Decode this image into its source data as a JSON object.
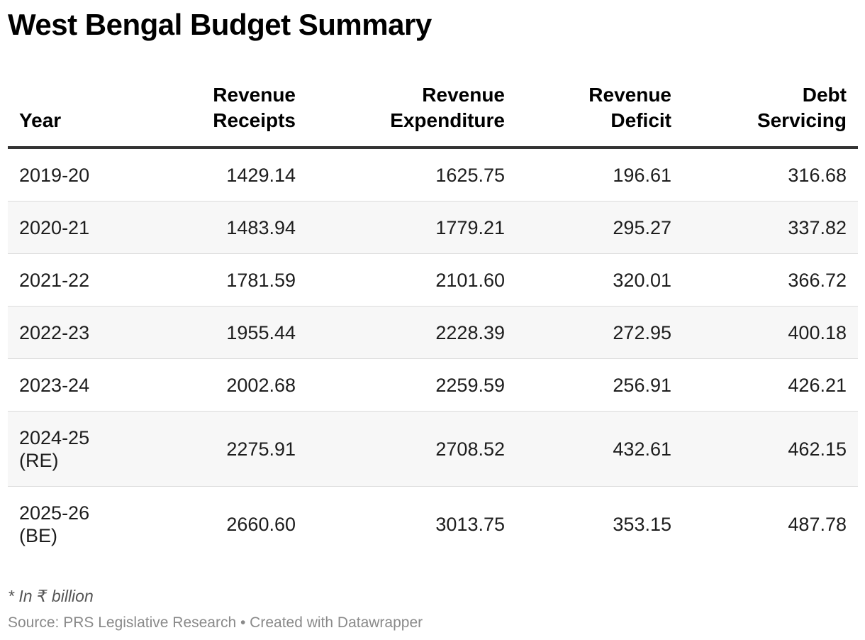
{
  "chart_data": {
    "type": "table",
    "title": "West Bengal Budget Summary",
    "columns": [
      "Year",
      "Revenue Receipts",
      "Revenue Expenditure",
      "Revenue Deficit",
      "Debt Servicing"
    ],
    "rows": [
      [
        "2019-20",
        "1429.14",
        "1625.75",
        "196.61",
        "316.68"
      ],
      [
        "2020-21",
        "1483.94",
        "1779.21",
        "295.27",
        "337.82"
      ],
      [
        "2021-22",
        "1781.59",
        "2101.60",
        "320.01",
        "366.72"
      ],
      [
        "2022-23",
        "1955.44",
        "2228.39",
        "272.95",
        "400.18"
      ],
      [
        "2023-24",
        "2002.68",
        "2259.59",
        "256.91",
        "426.21"
      ],
      [
        "2024-25 (RE)",
        "2275.91",
        "2708.52",
        "432.61",
        "462.15"
      ],
      [
        "2025-26 (BE)",
        "2660.60",
        "3013.75",
        "353.15",
        "487.78"
      ]
    ],
    "note": "* In ₹ billion",
    "source": "Source: PRS Legislative Research • Created with Datawrapper"
  }
}
